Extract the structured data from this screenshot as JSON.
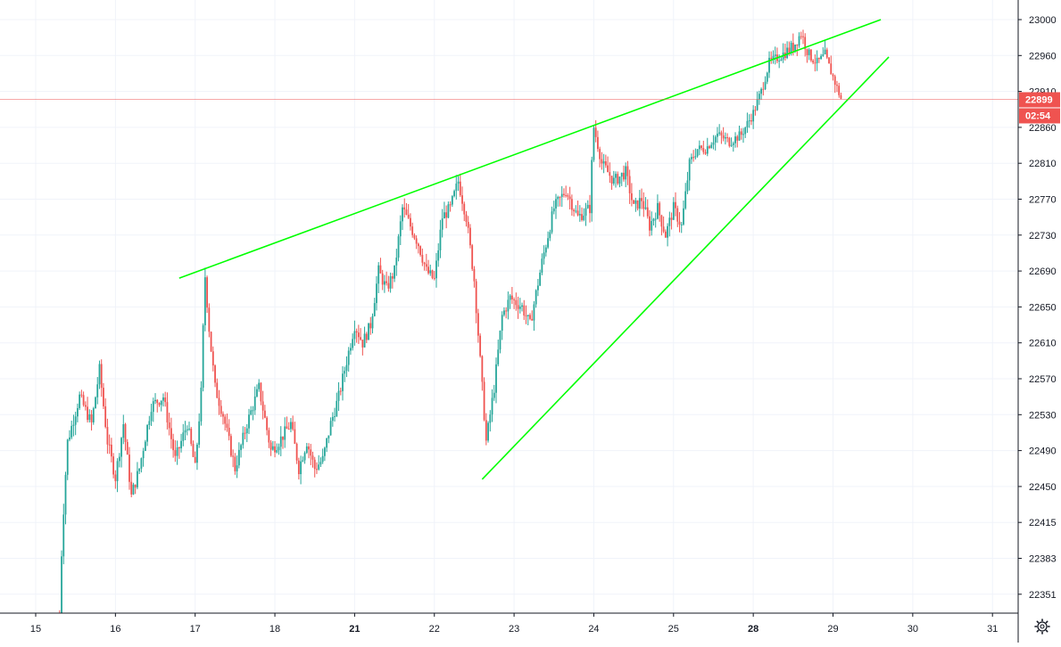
{
  "chart_data": {
    "type": "candlestick",
    "x_axis": {
      "day_labels": [
        {
          "label": "15",
          "day": 15,
          "bold": false
        },
        {
          "label": "16",
          "day": 16,
          "bold": false
        },
        {
          "label": "17",
          "day": 17,
          "bold": false
        },
        {
          "label": "18",
          "day": 18,
          "bold": false
        },
        {
          "label": "21",
          "day": 21,
          "bold": true
        },
        {
          "label": "22",
          "day": 22,
          "bold": false
        },
        {
          "label": "23",
          "day": 23,
          "bold": false
        },
        {
          "label": "24",
          "day": 24,
          "bold": false
        },
        {
          "label": "25",
          "day": 25,
          "bold": false
        },
        {
          "label": "28",
          "day": 28,
          "bold": true
        },
        {
          "label": "29",
          "day": 29,
          "bold": false
        },
        {
          "label": "30",
          "day": 30,
          "bold": false
        },
        {
          "label": "31",
          "day": 31,
          "bold": false
        }
      ]
    },
    "y_axis": {
      "position": "right",
      "ticks": [
        23000,
        22960,
        22910,
        22860,
        22810,
        22770,
        22730,
        22690,
        22650,
        22610,
        22570,
        22530,
        22490,
        22450,
        22415,
        22383,
        22351
      ],
      "range": [
        22330,
        23015
      ]
    },
    "grid": true,
    "last_price": {
      "value": "22899",
      "countdown": "02:54",
      "color": "#ef5350"
    },
    "colors": {
      "up": "#26a69a",
      "down": "#ef5350",
      "trendline": "#00ff00",
      "price_line": "#ef5350"
    },
    "price_path": [
      [
        15.3,
        22330
      ],
      [
        15.33,
        22400
      ],
      [
        15.4,
        22500
      ],
      [
        15.55,
        22550
      ],
      [
        15.7,
        22520
      ],
      [
        15.8,
        22580
      ],
      [
        15.9,
        22500
      ],
      [
        16.0,
        22460
      ],
      [
        16.1,
        22520
      ],
      [
        16.2,
        22440
      ],
      [
        16.3,
        22470
      ],
      [
        16.45,
        22540
      ],
      [
        16.6,
        22550
      ],
      [
        16.75,
        22480
      ],
      [
        16.9,
        22520
      ],
      [
        17.0,
        22470
      ],
      [
        17.08,
        22560
      ],
      [
        17.12,
        22690
      ],
      [
        17.18,
        22620
      ],
      [
        17.25,
        22560
      ],
      [
        17.35,
        22530
      ],
      [
        17.5,
        22470
      ],
      [
        17.65,
        22520
      ],
      [
        17.8,
        22560
      ],
      [
        17.95,
        22490
      ],
      [
        18.05,
        22500
      ],
      [
        18.2,
        22520
      ],
      [
        18.3,
        22470
      ],
      [
        18.4,
        22500
      ],
      [
        18.5,
        22470
      ],
      [
        18.6,
        22480
      ],
      [
        18.7,
        22520
      ],
      [
        18.8,
        22550
      ],
      [
        18.9,
        22590
      ],
      [
        19.0,
        22630
      ],
      [
        19.1,
        22610
      ],
      [
        19.2,
        22630
      ],
      [
        19.3,
        22690
      ],
      [
        19.4,
        22670
      ],
      [
        19.5,
        22690
      ],
      [
        19.6,
        22760
      ],
      [
        19.7,
        22740
      ],
      [
        19.8,
        22720
      ],
      [
        19.9,
        22690
      ],
      [
        20.0,
        22680
      ],
      [
        20.1,
        22750
      ],
      [
        20.2,
        22760
      ],
      [
        20.3,
        22790
      ],
      [
        20.4,
        22750
      ],
      [
        20.5,
        22680
      ],
      [
        20.6,
        22560
      ],
      [
        20.65,
        22500
      ],
      [
        20.75,
        22560
      ],
      [
        20.85,
        22640
      ],
      [
        20.95,
        22660
      ],
      [
        21.1,
        22650
      ],
      [
        21.2,
        22630
      ],
      [
        21.35,
        22700
      ],
      [
        21.5,
        22760
      ],
      [
        21.65,
        22780
      ],
      [
        21.8,
        22750
      ],
      [
        21.95,
        22760
      ],
      [
        22.0,
        22860
      ],
      [
        22.1,
        22810
      ],
      [
        22.25,
        22790
      ],
      [
        22.4,
        22800
      ],
      [
        22.5,
        22760
      ],
      [
        22.6,
        22770
      ],
      [
        22.7,
        22740
      ],
      [
        22.8,
        22760
      ],
      [
        22.9,
        22730
      ],
      [
        23.0,
        22760
      ],
      [
        23.1,
        22740
      ],
      [
        23.2,
        22810
      ],
      [
        23.3,
        22830
      ],
      [
        23.4,
        22830
      ],
      [
        23.55,
        22850
      ],
      [
        23.7,
        22840
      ],
      [
        23.85,
        22850
      ],
      [
        24.0,
        22880
      ],
      [
        24.1,
        22910
      ],
      [
        24.2,
        22950
      ],
      [
        24.35,
        22960
      ],
      [
        24.5,
        22970
      ],
      [
        24.6,
        22985
      ],
      [
        24.7,
        22960
      ],
      [
        24.8,
        22950
      ],
      [
        24.9,
        22960
      ],
      [
        25.0,
        22930
      ],
      [
        25.1,
        22900
      ]
    ],
    "trendlines": [
      {
        "name": "upper",
        "from": [
          16.8,
          22682
        ],
        "to": [
          25.6,
          23000
        ]
      },
      {
        "name": "lower",
        "from": [
          20.6,
          22458
        ],
        "to": [
          25.7,
          22958
        ]
      }
    ]
  }
}
